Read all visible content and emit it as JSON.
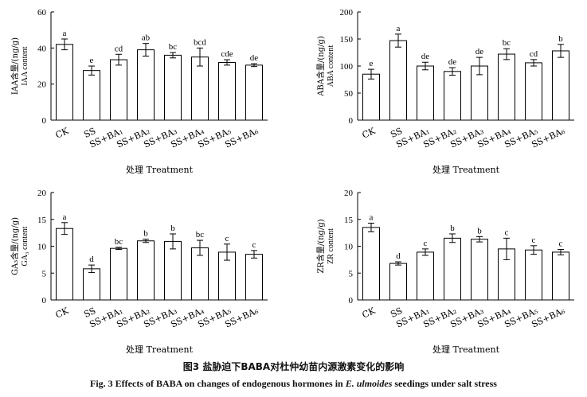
{
  "figure": {
    "caption_cn": "图3   盐胁迫下BABA对杜仲幼苗内源激素变化的影响",
    "caption_en_before": "Fig. 3    Effects of BABA on changes of endogenous hormones in ",
    "caption_en_species": "E. ulmoides",
    "caption_en_after": " seedings under salt stress"
  },
  "chart_data": [
    {
      "type": "bar",
      "title": "",
      "xlabel": "处理 Treatment",
      "ylabel_cn": "IAA含量/(ng/g)",
      "ylabel_en": "IAA content",
      "ylim": [
        0,
        60
      ],
      "yticks": [
        "0",
        "20",
        "40",
        "60"
      ],
      "categories": [
        "CK",
        "SS",
        "SS+BA₁",
        "SS+BA₂",
        "SS+BA₃",
        "SS+BA₄",
        "SS+BA₅",
        "SS+BA₆"
      ],
      "values": [
        42,
        27.5,
        33.5,
        39,
        36,
        35,
        32,
        30.5
      ],
      "errors": [
        3,
        2.5,
        3,
        3.5,
        1.5,
        5,
        1.5,
        0.8
      ],
      "letters": [
        "a",
        "e",
        "cd",
        "ab",
        "bc",
        "bcd",
        "cde",
        "de"
      ]
    },
    {
      "type": "bar",
      "title": "",
      "xlabel": "处理 Treatment",
      "ylabel_cn": "ABA含量/(ng/g)",
      "ylabel_en": "ABA content",
      "ylim": [
        0,
        200
      ],
      "yticks": [
        "0",
        "50",
        "100",
        "150",
        "200"
      ],
      "categories": [
        "CK",
        "SS",
        "SS+BA₁",
        "SS+BA₂",
        "SS+BA₃",
        "SS+BA₄",
        "SS+BA₅",
        "SS+BA₆"
      ],
      "values": [
        85,
        147,
        100,
        90,
        100,
        122,
        106,
        128
      ],
      "errors": [
        9,
        12,
        7,
        7,
        16,
        10,
        6,
        12
      ],
      "letters": [
        "e",
        "a",
        "de",
        "de",
        "de",
        "bc",
        "cd",
        "b"
      ]
    },
    {
      "type": "bar",
      "title": "",
      "xlabel": "处理 Treatment",
      "ylabel_cn": "GA₃含量/(ng/g)",
      "ylabel_en": "GA₃ content",
      "ylim": [
        0,
        20
      ],
      "yticks": [
        "0",
        "5",
        "10",
        "15",
        "20"
      ],
      "categories": [
        "CK",
        "SS",
        "SS+BA₁",
        "SS+BA₂",
        "SS+BA₃",
        "SS+BA₄",
        "SS+BA₅",
        "SS+BA₆"
      ],
      "values": [
        13.3,
        5.8,
        9.6,
        11,
        10.9,
        9.7,
        8.9,
        8.5
      ],
      "errors": [
        1.1,
        0.7,
        0.2,
        0.3,
        1.4,
        1.4,
        1.5,
        0.7
      ],
      "letters": [
        "a",
        "d",
        "bc",
        "b",
        "b",
        "bc",
        "c",
        "c"
      ]
    },
    {
      "type": "bar",
      "title": "",
      "xlabel": "处理 Treatment",
      "ylabel_cn": "ZR含量/(ng/g)",
      "ylabel_en": "ZR content",
      "ylim": [
        0,
        20
      ],
      "yticks": [
        "0",
        "5",
        "10",
        "15",
        "20"
      ],
      "categories": [
        "CK",
        "SS",
        "SS+BA₁",
        "SS+BA₂",
        "SS+BA₃",
        "SS+BA₄",
        "SS+BA₅",
        "SS+BA₆"
      ],
      "values": [
        13.5,
        6.8,
        8.9,
        11.5,
        11.3,
        9.5,
        9.3,
        8.9
      ],
      "errors": [
        0.8,
        0.3,
        0.6,
        0.8,
        0.5,
        2,
        0.8,
        0.5
      ],
      "letters": [
        "a",
        "d",
        "c",
        "b",
        "b",
        "c",
        "c",
        "c"
      ]
    }
  ]
}
